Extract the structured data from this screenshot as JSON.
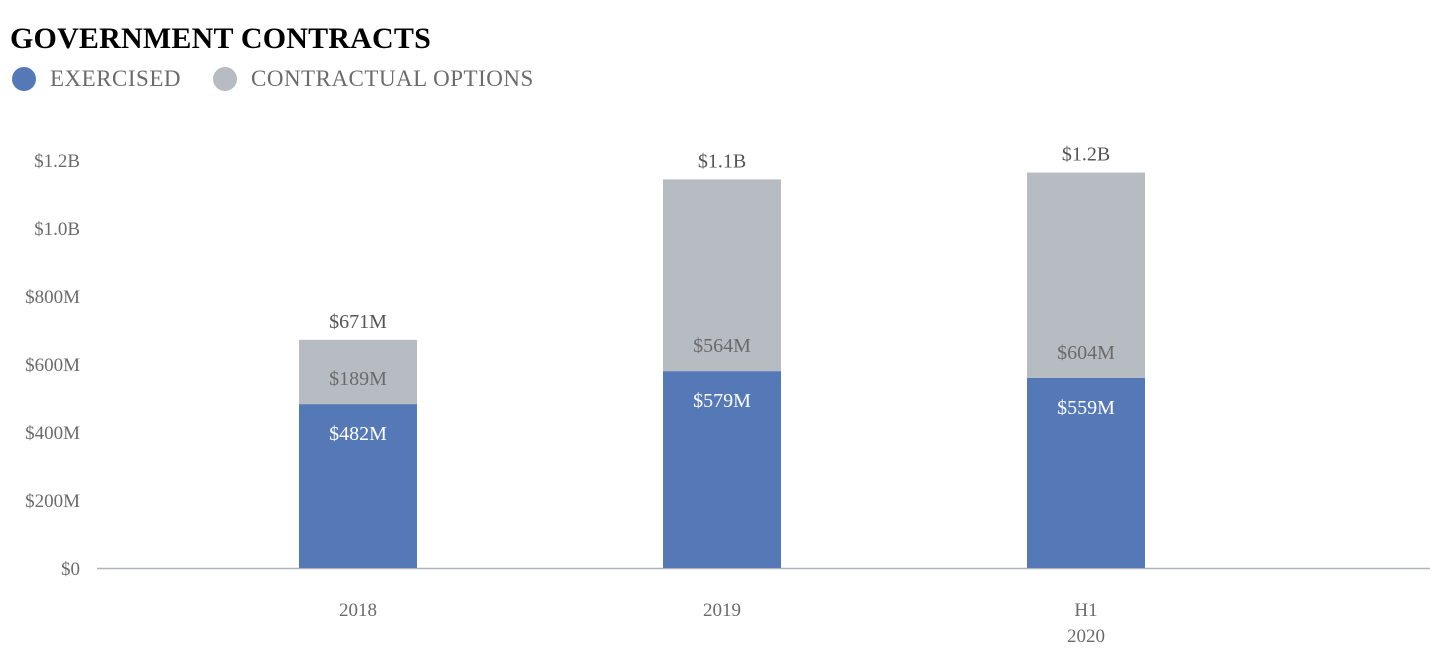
{
  "title": "GOVERNMENT CONTRACTS",
  "legend": [
    {
      "label": "EXERCISED",
      "color": "#5578b6"
    },
    {
      "label": "CONTRACTUAL OPTIONS",
      "color": "#b6bcc2"
    }
  ],
  "chart_data": {
    "type": "bar",
    "stacked": true,
    "title": "GOVERNMENT CONTRACTS",
    "legend_position": "top-left",
    "grid": false,
    "categories": [
      [
        "2018"
      ],
      [
        "2019"
      ],
      [
        "H1",
        "2020"
      ]
    ],
    "series": [
      {
        "name": "EXERCISED",
        "values": [
          482,
          579,
          559
        ],
        "labels": [
          "$482M",
          "$579M",
          "$559M"
        ],
        "color": "#5578b6",
        "label_color": "#ffffff"
      },
      {
        "name": "CONTRACTUAL OPTIONS",
        "values": [
          189,
          564,
          604
        ],
        "labels": [
          "$189M",
          "$564M",
          "$604M"
        ],
        "color": "#b6bcc2",
        "label_color": "#6b6b6b"
      }
    ],
    "totals": {
      "values": [
        671,
        1143,
        1163
      ],
      "labels": [
        "$671M",
        "$1.1B",
        "$1.2B"
      ]
    },
    "y_ticks": [
      {
        "value": 0,
        "label": "$0"
      },
      {
        "value": 200,
        "label": "$200M"
      },
      {
        "value": 400,
        "label": "$400M"
      },
      {
        "value": 600,
        "label": "$600M"
      },
      {
        "value": 800,
        "label": "$800M"
      },
      {
        "value": 1000,
        "label": "$1.0B"
      },
      {
        "value": 1200,
        "label": "$1.2B"
      }
    ],
    "ylim": [
      0,
      1200
    ],
    "ylabel": "",
    "xlabel": ""
  }
}
